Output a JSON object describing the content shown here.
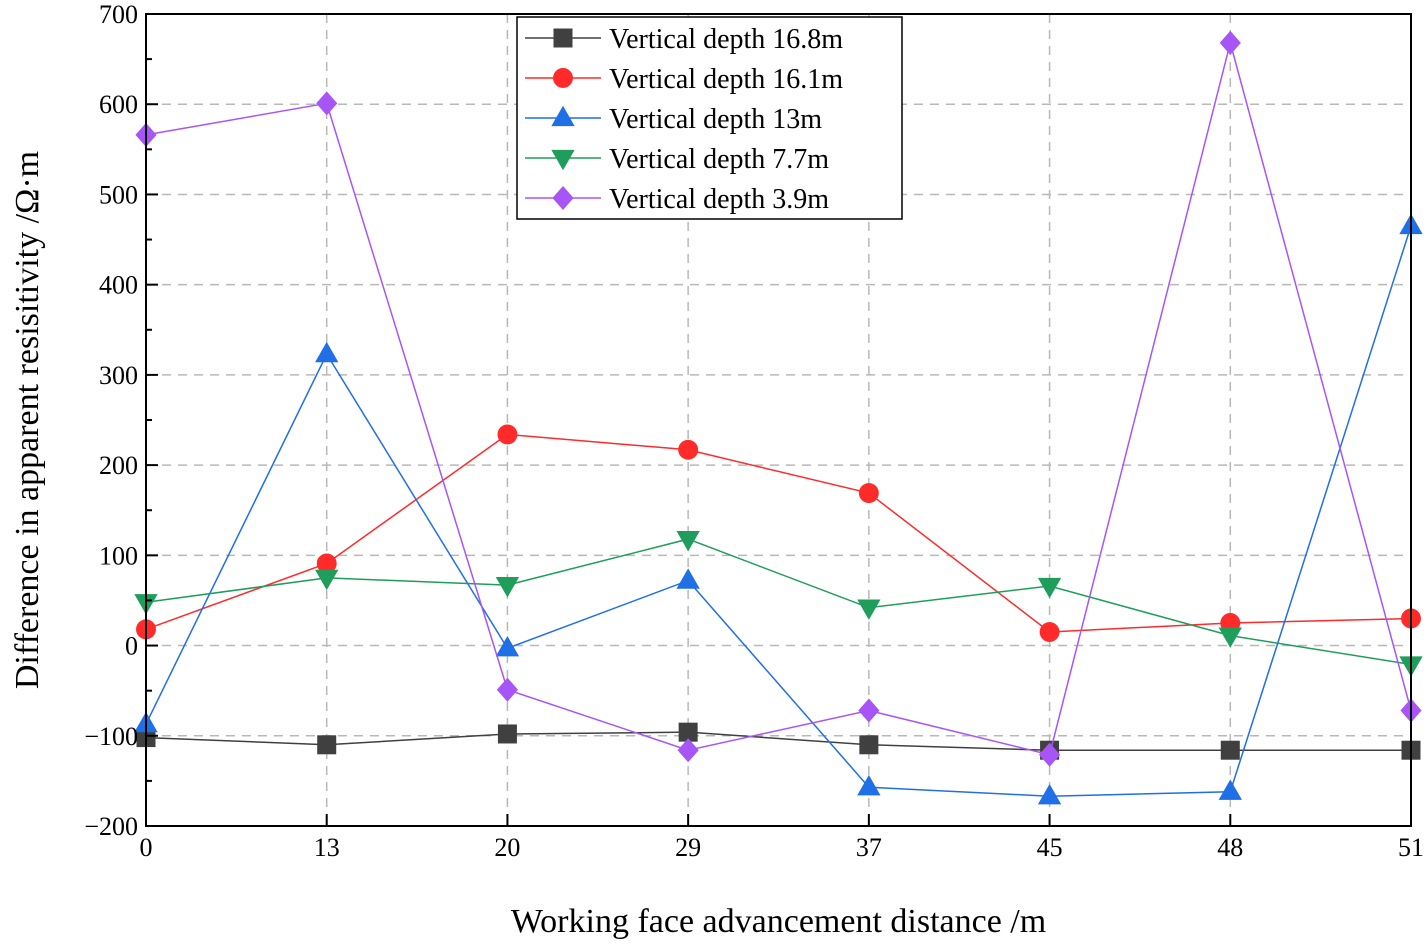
{
  "chart_data": {
    "type": "line",
    "title": "",
    "xlabel": "Working face advancement distance /m",
    "ylabel": "Difference in apparent resisitivity /Ω·m",
    "categories": [
      "0",
      "13",
      "20",
      "29",
      "37",
      "45",
      "48",
      "51"
    ],
    "ylim": [
      -200,
      700
    ],
    "yticks": [
      -200,
      -100,
      0,
      100,
      200,
      300,
      400,
      500,
      600,
      700
    ],
    "grid": true,
    "legend_position": "top-center",
    "series": [
      {
        "name": "Vertical depth 16.8m",
        "color": "#404040",
        "marker": "square",
        "values": [
          -102,
          -110,
          -98,
          -96,
          -110,
          -116,
          -116,
          -116
        ]
      },
      {
        "name": "Vertical depth 16.1m",
        "color": "#ff2a2a",
        "marker": "circle",
        "values": [
          18,
          91,
          234,
          217,
          169,
          15,
          25,
          30
        ]
      },
      {
        "name": "Vertical depth 13m",
        "color": "#1f6fe6",
        "marker": "triangle-up",
        "values": [
          -87,
          323,
          -3,
          72,
          -157,
          -167,
          -162,
          465
        ]
      },
      {
        "name": "Vertical depth 7.7m",
        "color": "#1e9e5a",
        "marker": "triangle-down",
        "values": [
          48,
          75,
          67,
          118,
          42,
          66,
          11,
          -21
        ]
      },
      {
        "name": "Vertical depth 3.9m",
        "color": "#a855f7",
        "marker": "diamond",
        "values": [
          566,
          601,
          -49,
          -116,
          -72,
          -121,
          668,
          -72
        ]
      }
    ]
  }
}
